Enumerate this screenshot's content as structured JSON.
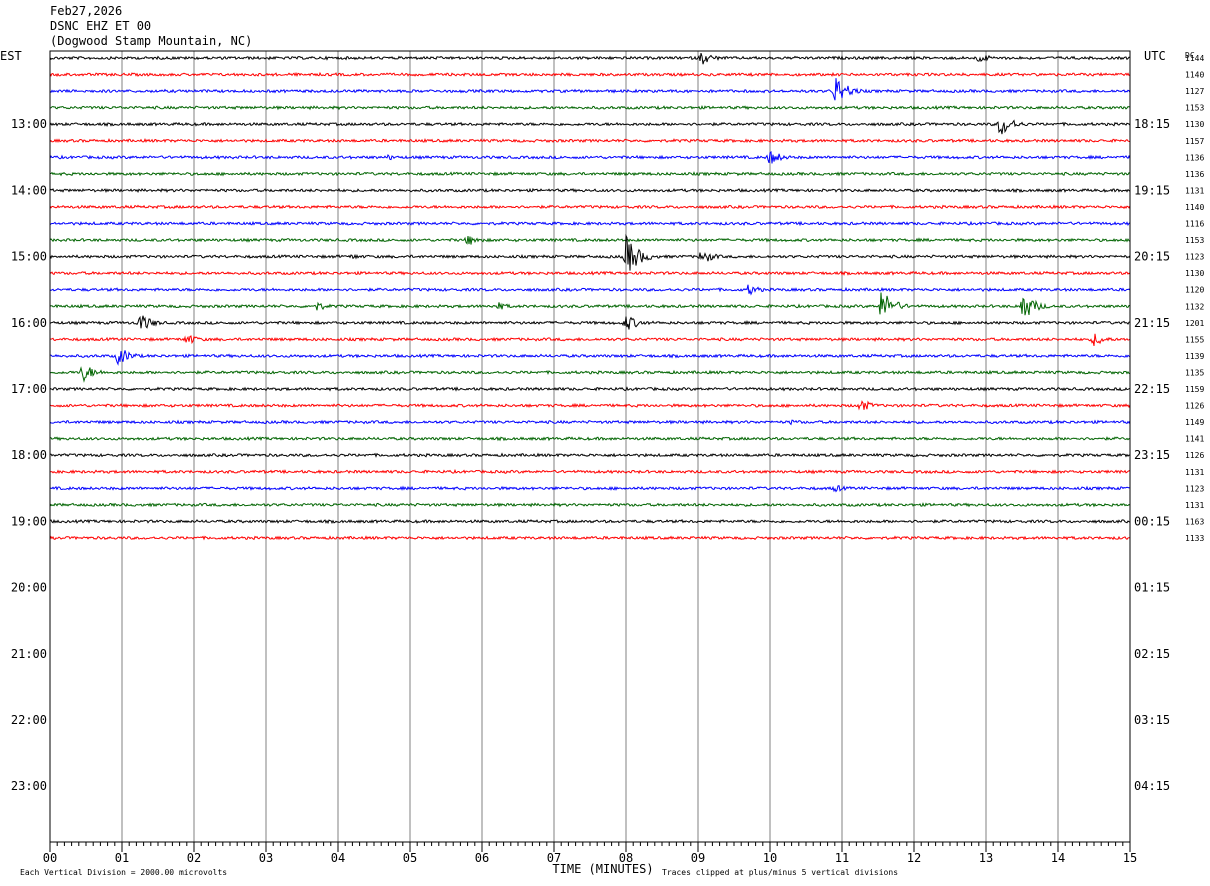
{
  "header": {
    "date": "Feb27,2026",
    "station": "DSNC EHZ ET 00",
    "location": "(Dogwood Stamp Mountain, NC)"
  },
  "chart_data": {
    "type": "line",
    "title": "DSNC EHZ ET 00",
    "left_axis_label": "EST",
    "right_axis_label": "UTC",
    "dc_label": "DC",
    "xlabel": "TIME (MINUTES)",
    "x_range": [
      0,
      15
    ],
    "x_ticks": [
      "00",
      "01",
      "02",
      "03",
      "04",
      "05",
      "06",
      "07",
      "08",
      "09",
      "10",
      "11",
      "12",
      "13",
      "14",
      "15"
    ],
    "left_hour_labels": [
      "13:00",
      "14:00",
      "15:00",
      "16:00",
      "17:00",
      "18:00",
      "19:00",
      "20:00",
      "21:00",
      "22:00",
      "23:00"
    ],
    "right_hour_labels": [
      "18:15",
      "19:15",
      "20:15",
      "21:15",
      "22:15",
      "23:15",
      "00:15",
      "01:15",
      "02:15",
      "03:15",
      "04:15"
    ],
    "first_labeled_row": 4,
    "rows_per_hour": 4,
    "trace_colors": [
      "#000000",
      "#ff0000",
      "#0000ff",
      "#006400"
    ],
    "dc_values": [
      "1144",
      "1140",
      "1127",
      "1153",
      "1130",
      "1157",
      "1136",
      "1136",
      "1131",
      "1140",
      "1116",
      "1153",
      "1123",
      "1130",
      "1120",
      "1132",
      "1201",
      "1155",
      "1139",
      "1135",
      "1159",
      "1126",
      "1149",
      "1141",
      "1126",
      "1131",
      "1123",
      "1131",
      "1163",
      "1133"
    ],
    "events": [
      {
        "row": 0,
        "minute": 9.05,
        "amp": 7
      },
      {
        "row": 0,
        "minute": 12.9,
        "amp": 5
      },
      {
        "row": 2,
        "minute": 10.9,
        "amp": 16
      },
      {
        "row": 4,
        "minute": 13.2,
        "amp": 13
      },
      {
        "row": 6,
        "minute": 10.0,
        "amp": 8
      },
      {
        "row": 6,
        "minute": 4.7,
        "amp": 3
      },
      {
        "row": 11,
        "minute": 5.8,
        "amp": 6
      },
      {
        "row": 12,
        "minute": 8.0,
        "amp": 22
      },
      {
        "row": 12,
        "minute": 9.05,
        "amp": 8
      },
      {
        "row": 12,
        "minute": 4.2,
        "amp": 3
      },
      {
        "row": 14,
        "minute": 9.7,
        "amp": 6
      },
      {
        "row": 15,
        "minute": 11.55,
        "amp": 17
      },
      {
        "row": 15,
        "minute": 13.5,
        "amp": 16
      },
      {
        "row": 15,
        "minute": 3.7,
        "amp": 5
      },
      {
        "row": 15,
        "minute": 6.2,
        "amp": 5
      },
      {
        "row": 16,
        "minute": 1.25,
        "amp": 10
      },
      {
        "row": 16,
        "minute": 8.0,
        "amp": 9
      },
      {
        "row": 17,
        "minute": 1.9,
        "amp": 6
      },
      {
        "row": 17,
        "minute": 14.5,
        "amp": 7
      },
      {
        "row": 18,
        "minute": 0.95,
        "amp": 10
      },
      {
        "row": 19,
        "minute": 0.45,
        "amp": 10
      },
      {
        "row": 21,
        "minute": 11.25,
        "amp": 7
      },
      {
        "row": 22,
        "minute": 10.3,
        "amp": 3
      },
      {
        "row": 26,
        "minute": 10.9,
        "amp": 4
      }
    ]
  },
  "footer": {
    "scale_note": "Each Vertical Division = 2000.00 microvolts",
    "clip_note": "Traces clipped at plus/minus 5 vertical divisions"
  }
}
